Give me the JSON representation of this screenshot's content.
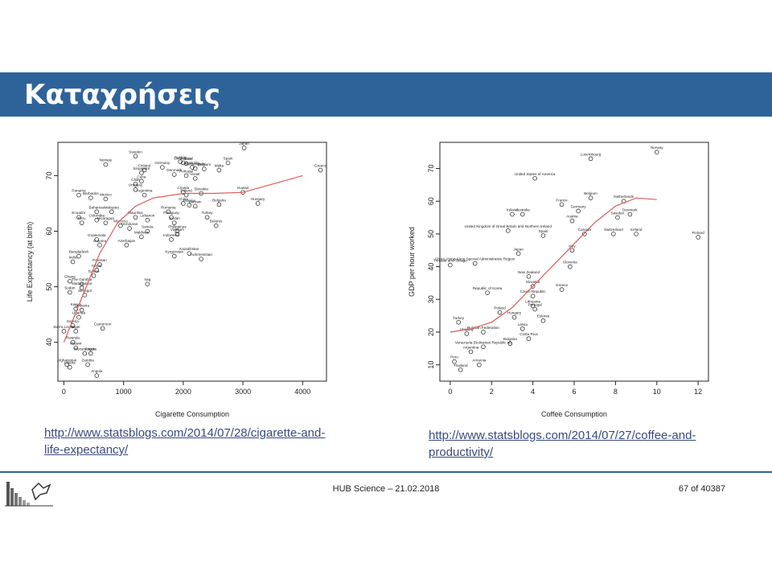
{
  "slide": {
    "title": "Καταχρήσεις",
    "footer_center": "HUB Science – 21.02.2018",
    "page_number": "67 of 40387",
    "link_left": "http://www.statsblogs.com/2014/07/28/cigarette-and-life-expectancy/",
    "link_right": "http://www.statsblogs.com/2014/07/27/coffee-and-productivity/",
    "colors": {
      "title_bar": "#2e6399",
      "trend_line": "#e05a5a",
      "link": "#3b4a80"
    }
  },
  "chart_data": [
    {
      "type": "scatter",
      "xlabel": "Cigarette Consumption",
      "ylabel": "Life Expectancy (at birth)",
      "xlim": [
        -100,
        4400
      ],
      "ylim": [
        33,
        76
      ],
      "xticks": [
        0,
        1000,
        2000,
        3000,
        4000
      ],
      "yticks": [
        40,
        50,
        60,
        70
      ],
      "grid": false,
      "points": [
        {
          "x": 3020,
          "y": 75,
          "label": "Japan"
        },
        {
          "x": 4300,
          "y": 71,
          "label": "Greece"
        },
        {
          "x": 2750,
          "y": 72.3,
          "label": "Spain"
        },
        {
          "x": 2600,
          "y": 71,
          "label": "Malta"
        },
        {
          "x": 1200,
          "y": 73.5,
          "label": "Sweden"
        },
        {
          "x": 700,
          "y": 72,
          "label": "Norway"
        },
        {
          "x": 1350,
          "y": 71,
          "label": "Finland"
        },
        {
          "x": 1300,
          "y": 70.5,
          "label": "Singapore"
        },
        {
          "x": 1650,
          "y": 71.5,
          "label": "Germany"
        },
        {
          "x": 1950,
          "y": 72.5,
          "label": "Austria"
        },
        {
          "x": 2000,
          "y": 72.3,
          "label": "Switzerland"
        },
        {
          "x": 2050,
          "y": 72.2,
          "label": "France"
        },
        {
          "x": 2150,
          "y": 71.5,
          "label": "Australia"
        },
        {
          "x": 2200,
          "y": 71.3,
          "label": "Netherlands"
        },
        {
          "x": 2350,
          "y": 71.2,
          "label": "Belgium"
        },
        {
          "x": 1850,
          "y": 70.2,
          "label": "Denmark"
        },
        {
          "x": 2050,
          "y": 70,
          "label": "Portugal"
        },
        {
          "x": 2200,
          "y": 69.5,
          "label": "Israel"
        },
        {
          "x": 1300,
          "y": 69,
          "label": "Cuba"
        },
        {
          "x": 1200,
          "y": 68.5,
          "label": "Chile"
        },
        {
          "x": 1200,
          "y": 67.5,
          "label": "Uruguay"
        },
        {
          "x": 1350,
          "y": 66.5,
          "label": "Argentina"
        },
        {
          "x": 2000,
          "y": 67,
          "label": "Croatia"
        },
        {
          "x": 2050,
          "y": 66.5,
          "label": "Poland"
        },
        {
          "x": 2300,
          "y": 66.8,
          "label": "Slovakia"
        },
        {
          "x": 3000,
          "y": 67,
          "label": "Kuwait"
        },
        {
          "x": 3250,
          "y": 65,
          "label": "Hungary"
        },
        {
          "x": 2600,
          "y": 64.8,
          "label": "Bulgaria"
        },
        {
          "x": 2200,
          "y": 64.5,
          "label": "Bahrain"
        },
        {
          "x": 2000,
          "y": 65,
          "label": "China"
        },
        {
          "x": 2100,
          "y": 64.7,
          "label": "Estonia"
        },
        {
          "x": 250,
          "y": 66.5,
          "label": "Panama"
        },
        {
          "x": 450,
          "y": 66,
          "label": "Barbados"
        },
        {
          "x": 700,
          "y": 65.8,
          "label": "Mexico"
        },
        {
          "x": 800,
          "y": 63.5,
          "label": "Malaysia"
        },
        {
          "x": 550,
          "y": 63.5,
          "label": "Bahamas"
        },
        {
          "x": 250,
          "y": 62.5,
          "label": "Ecuador"
        },
        {
          "x": 300,
          "y": 61.5,
          "label": "Peru"
        },
        {
          "x": 550,
          "y": 62,
          "label": "Colombia"
        },
        {
          "x": 700,
          "y": 61.5,
          "label": "Nicaragua"
        },
        {
          "x": 1200,
          "y": 62.5,
          "label": "Mauritius"
        },
        {
          "x": 1750,
          "y": 63.5,
          "label": "Romania"
        },
        {
          "x": 1800,
          "y": 62.5,
          "label": "Paraguay"
        },
        {
          "x": 2400,
          "y": 62.5,
          "label": "Turkey"
        },
        {
          "x": 2550,
          "y": 61,
          "label": "Belarus"
        },
        {
          "x": 1400,
          "y": 62,
          "label": "Lebanon"
        },
        {
          "x": 1850,
          "y": 61.5,
          "label": "Jordan"
        },
        {
          "x": 950,
          "y": 61,
          "label": "Morocco"
        },
        {
          "x": 1100,
          "y": 60.5,
          "label": "Honduras"
        },
        {
          "x": 1400,
          "y": 60,
          "label": "Samoa"
        },
        {
          "x": 1900,
          "y": 60,
          "label": "Philippines"
        },
        {
          "x": 1900,
          "y": 59.5,
          "label": "Vietnam"
        },
        {
          "x": 1800,
          "y": 58.5,
          "label": "Indonesia"
        },
        {
          "x": 1300,
          "y": 59,
          "label": "Maldives"
        },
        {
          "x": 550,
          "y": 58.5,
          "label": "Guatemala"
        },
        {
          "x": 1050,
          "y": 57.5,
          "label": "Azerbaijan"
        },
        {
          "x": 600,
          "y": 57.5,
          "label": "Guyana"
        },
        {
          "x": 2100,
          "y": 56,
          "label": "Kazakhstan"
        },
        {
          "x": 1850,
          "y": 55.5,
          "label": "Kyrgyzstan"
        },
        {
          "x": 2300,
          "y": 55,
          "label": "Turkmenistan"
        },
        {
          "x": 250,
          "y": 55.5,
          "label": "Bangladesh"
        },
        {
          "x": 150,
          "y": 54.5,
          "label": "India"
        },
        {
          "x": 600,
          "y": 54,
          "label": "Pakistan"
        },
        {
          "x": 550,
          "y": 53,
          "label": "Nepal"
        },
        {
          "x": 500,
          "y": 52,
          "label": "Gabon"
        },
        {
          "x": 1400,
          "y": 50.5,
          "label": "Iraq"
        },
        {
          "x": 100,
          "y": 51,
          "label": "Ghana"
        },
        {
          "x": 300,
          "y": 50.5,
          "label": "The Gambia"
        },
        {
          "x": 100,
          "y": 49,
          "label": "Sudan"
        },
        {
          "x": 300,
          "y": 49.8,
          "label": "Madagascar"
        },
        {
          "x": 350,
          "y": 48.5,
          "label": "Senegal"
        },
        {
          "x": 200,
          "y": 46,
          "label": "Kenya"
        },
        {
          "x": 300,
          "y": 45.8,
          "label": "Tanzania"
        },
        {
          "x": 250,
          "y": 44.5,
          "label": "Uganda"
        },
        {
          "x": 150,
          "y": 43,
          "label": "Nigeria"
        },
        {
          "x": 0,
          "y": 42,
          "label": "Sierra Leone"
        },
        {
          "x": 200,
          "y": 42,
          "label": "Niger"
        },
        {
          "x": 650,
          "y": 42.5,
          "label": "Cameroon"
        },
        {
          "x": 150,
          "y": 40,
          "label": "Rwanda"
        },
        {
          "x": 200,
          "y": 39,
          "label": "Malawi"
        },
        {
          "x": 350,
          "y": 38,
          "label": "Mozambique"
        },
        {
          "x": 450,
          "y": 38,
          "label": "Angola"
        },
        {
          "x": 50,
          "y": 36,
          "label": "Afghanistan"
        },
        {
          "x": 100,
          "y": 35.5,
          "label": "Liberia"
        },
        {
          "x": 400,
          "y": 36,
          "label": "Zambia"
        },
        {
          "x": 550,
          "y": 34,
          "label": "Angola"
        }
      ],
      "trend": [
        [
          0,
          40
        ],
        [
          300,
          48
        ],
        [
          600,
          56
        ],
        [
          900,
          61.5
        ],
        [
          1200,
          64.5
        ],
        [
          1500,
          66
        ],
        [
          2000,
          66.8
        ],
        [
          2500,
          66.8
        ],
        [
          3000,
          67
        ],
        [
          3500,
          68.5
        ],
        [
          4000,
          70
        ]
      ]
    },
    {
      "type": "scatter",
      "xlabel": "Coffee Consumption",
      "ylabel": "GDP per hour worked",
      "xlim": [
        -0.5,
        12.5
      ],
      "ylim": [
        5,
        78
      ],
      "xticks": [
        0,
        2,
        4,
        6,
        8,
        10,
        12
      ],
      "yticks": [
        10,
        20,
        30,
        40,
        50,
        60,
        70
      ],
      "grid": false,
      "points": [
        {
          "x": 10,
          "y": 75,
          "label": "Norway"
        },
        {
          "x": 6.8,
          "y": 73,
          "label": "Luxembourg"
        },
        {
          "x": 4.1,
          "y": 67,
          "label": "United States of America"
        },
        {
          "x": 6.8,
          "y": 61,
          "label": "Belgium"
        },
        {
          "x": 8.4,
          "y": 60,
          "label": "Netherlands"
        },
        {
          "x": 5.4,
          "y": 59,
          "label": "France"
        },
        {
          "x": 6.2,
          "y": 57,
          "label": "Germany"
        },
        {
          "x": 8.7,
          "y": 56,
          "label": "Denmark"
        },
        {
          "x": 8.1,
          "y": 55,
          "label": "Sweden"
        },
        {
          "x": 5.9,
          "y": 54,
          "label": "Austria"
        },
        {
          "x": 3.5,
          "y": 56,
          "label": "Australia"
        },
        {
          "x": 3.0,
          "y": 56,
          "label": "Ireland"
        },
        {
          "x": 2.8,
          "y": 51,
          "label": "United Kingdom of Great Britain and Northern Ireland"
        },
        {
          "x": 6.5,
          "y": 50,
          "label": "Canada"
        },
        {
          "x": 7.9,
          "y": 50,
          "label": "Switzerland"
        },
        {
          "x": 9.0,
          "y": 50,
          "label": "Iceland"
        },
        {
          "x": 12,
          "y": 49,
          "label": "Finland"
        },
        {
          "x": 4.5,
          "y": 49.5,
          "label": "Spain"
        },
        {
          "x": 5.9,
          "y": 45,
          "label": "Italy"
        },
        {
          "x": 3.3,
          "y": 44,
          "label": "Japan"
        },
        {
          "x": 0,
          "y": 40.5,
          "label": "Trinidad and Tobago"
        },
        {
          "x": 1.2,
          "y": 41,
          "label": "China, Hong Kong Special Administrative Region"
        },
        {
          "x": 5.8,
          "y": 40,
          "label": "Slovenia"
        },
        {
          "x": 3.8,
          "y": 37,
          "label": "New Zealand"
        },
        {
          "x": 4.0,
          "y": 34,
          "label": "Slovakia"
        },
        {
          "x": 5.4,
          "y": 33,
          "label": "Greece"
        },
        {
          "x": 4.0,
          "y": 31,
          "label": "Czech Republic"
        },
        {
          "x": 1.8,
          "y": 32,
          "label": "Republic of Korea"
        },
        {
          "x": 4.0,
          "y": 28,
          "label": "Lithuania"
        },
        {
          "x": 4.1,
          "y": 27,
          "label": "Portugal"
        },
        {
          "x": 2.4,
          "y": 26,
          "label": "Poland"
        },
        {
          "x": 3.1,
          "y": 24.5,
          "label": "Hungary"
        },
        {
          "x": 4.5,
          "y": 23.5,
          "label": "Estonia"
        },
        {
          "x": 0.4,
          "y": 23,
          "label": "Turkey"
        },
        {
          "x": 3.5,
          "y": 21,
          "label": "Latvia"
        },
        {
          "x": 1.6,
          "y": 20,
          "label": "Russian Federation"
        },
        {
          "x": 0.8,
          "y": 19.5,
          "label": "Uruguay"
        },
        {
          "x": 3.8,
          "y": 18,
          "label": "Costa Rica"
        },
        {
          "x": 2.9,
          "y": 16.5,
          "label": "Bulgaria"
        },
        {
          "x": 1.6,
          "y": 15.5,
          "label": "Venezuela (Bolivarian Republic of)"
        },
        {
          "x": 1.0,
          "y": 14,
          "label": "Argentina"
        },
        {
          "x": 0.2,
          "y": 11,
          "label": "Peru"
        },
        {
          "x": 1.4,
          "y": 10,
          "label": "Armenia"
        },
        {
          "x": 0.5,
          "y": 8.5,
          "label": "Thailand"
        }
      ],
      "trend": [
        [
          0,
          20
        ],
        [
          1,
          21
        ],
        [
          2,
          23
        ],
        [
          3,
          27.5
        ],
        [
          4,
          34
        ],
        [
          5,
          40.5
        ],
        [
          6,
          47
        ],
        [
          7,
          53.5
        ],
        [
          8,
          58.5
        ],
        [
          9,
          61
        ],
        [
          10,
          60.5
        ]
      ]
    }
  ]
}
